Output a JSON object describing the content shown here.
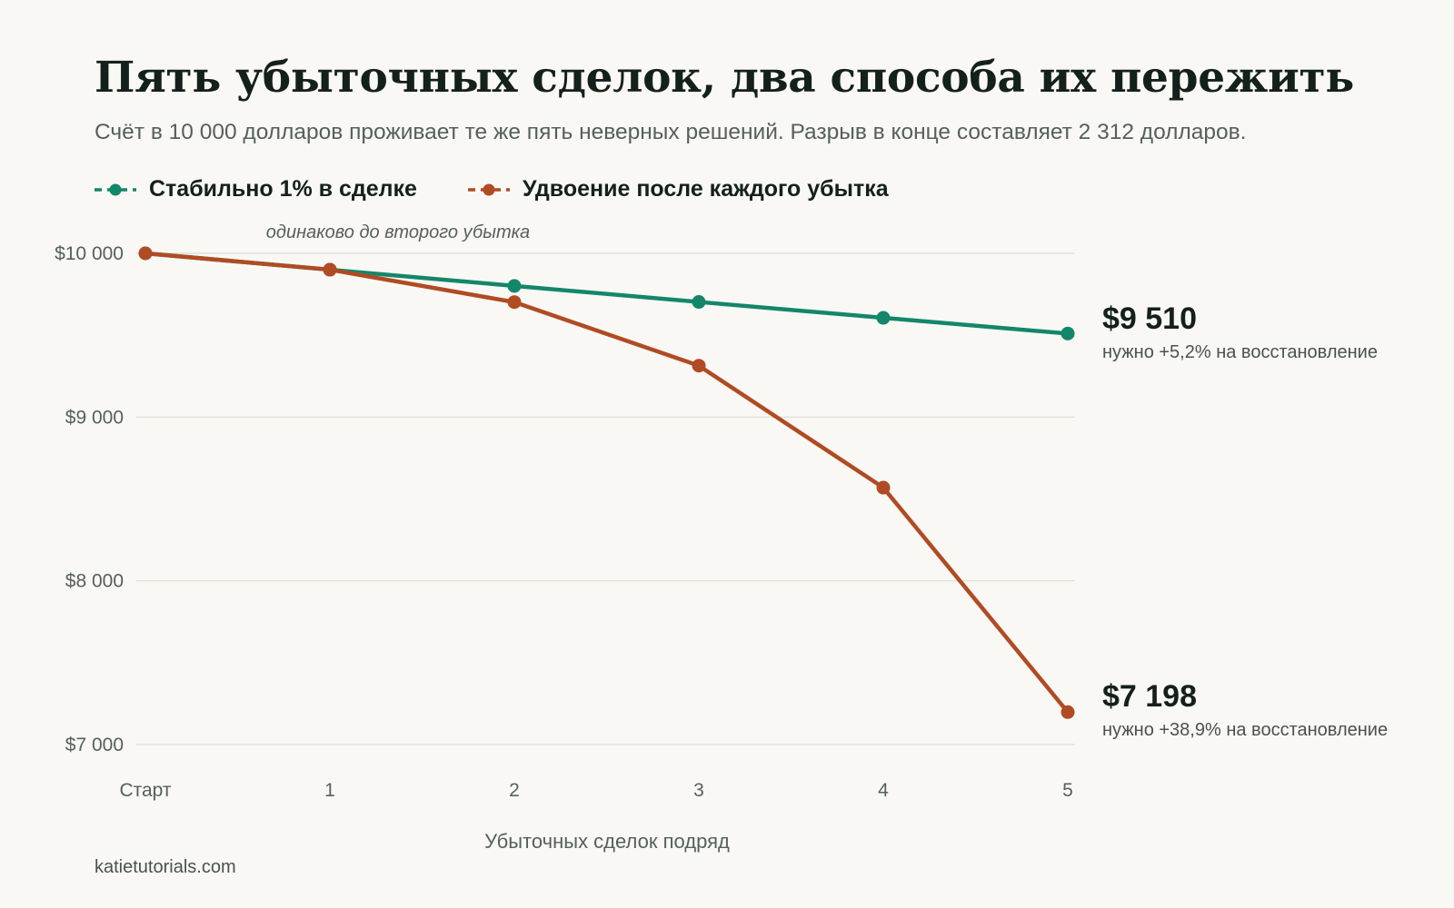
{
  "header": {
    "title": "Пять убыточных сделок, два способа их пережить",
    "subtitle": "Счёт в 10 000 долларов проживает те же пять неверных решений. Разрыв в конце составляет 2 312 долларов."
  },
  "source": "katietutorials.com",
  "colors": {
    "background": "#f9f8f4",
    "steady": "#14866a",
    "doubling": "#b04b24",
    "grid": "#dcdcd6",
    "text": "#14201b",
    "muted": "#56605b"
  },
  "chart_data": {
    "type": "line",
    "categories": [
      "Старт",
      "1",
      "2",
      "3",
      "4",
      "5"
    ],
    "xlabel": "Убыточных сделок подряд",
    "ylabel": "",
    "ylim": [
      7000,
      10000
    ],
    "yticks": [
      {
        "value": 10000,
        "label": "$10 000"
      },
      {
        "value": 9000,
        "label": "$9 000"
      },
      {
        "value": 8000,
        "label": "$8 000"
      },
      {
        "value": 7000,
        "label": "$7 000"
      }
    ],
    "grid": "horizontal",
    "legend_position": "top-left",
    "series": [
      {
        "name": "Стабильно 1% в сделке",
        "color": "#14866a",
        "values": [
          10000,
          9900,
          9801,
          9703,
          9606,
          9510
        ],
        "end_label": "$9 510",
        "end_note": "нужно +5,2% на восстановление"
      },
      {
        "name": "Удвоение после каждого убытка",
        "color": "#b04b24",
        "values": [
          10000,
          9900,
          9702,
          9314,
          8569,
          7198
        ],
        "end_label": "$7 198",
        "end_note": "нужно +38,9% на восстановление"
      }
    ],
    "annotations": [
      {
        "text": "одинаково до второго убытка",
        "near_category": "1"
      }
    ]
  }
}
